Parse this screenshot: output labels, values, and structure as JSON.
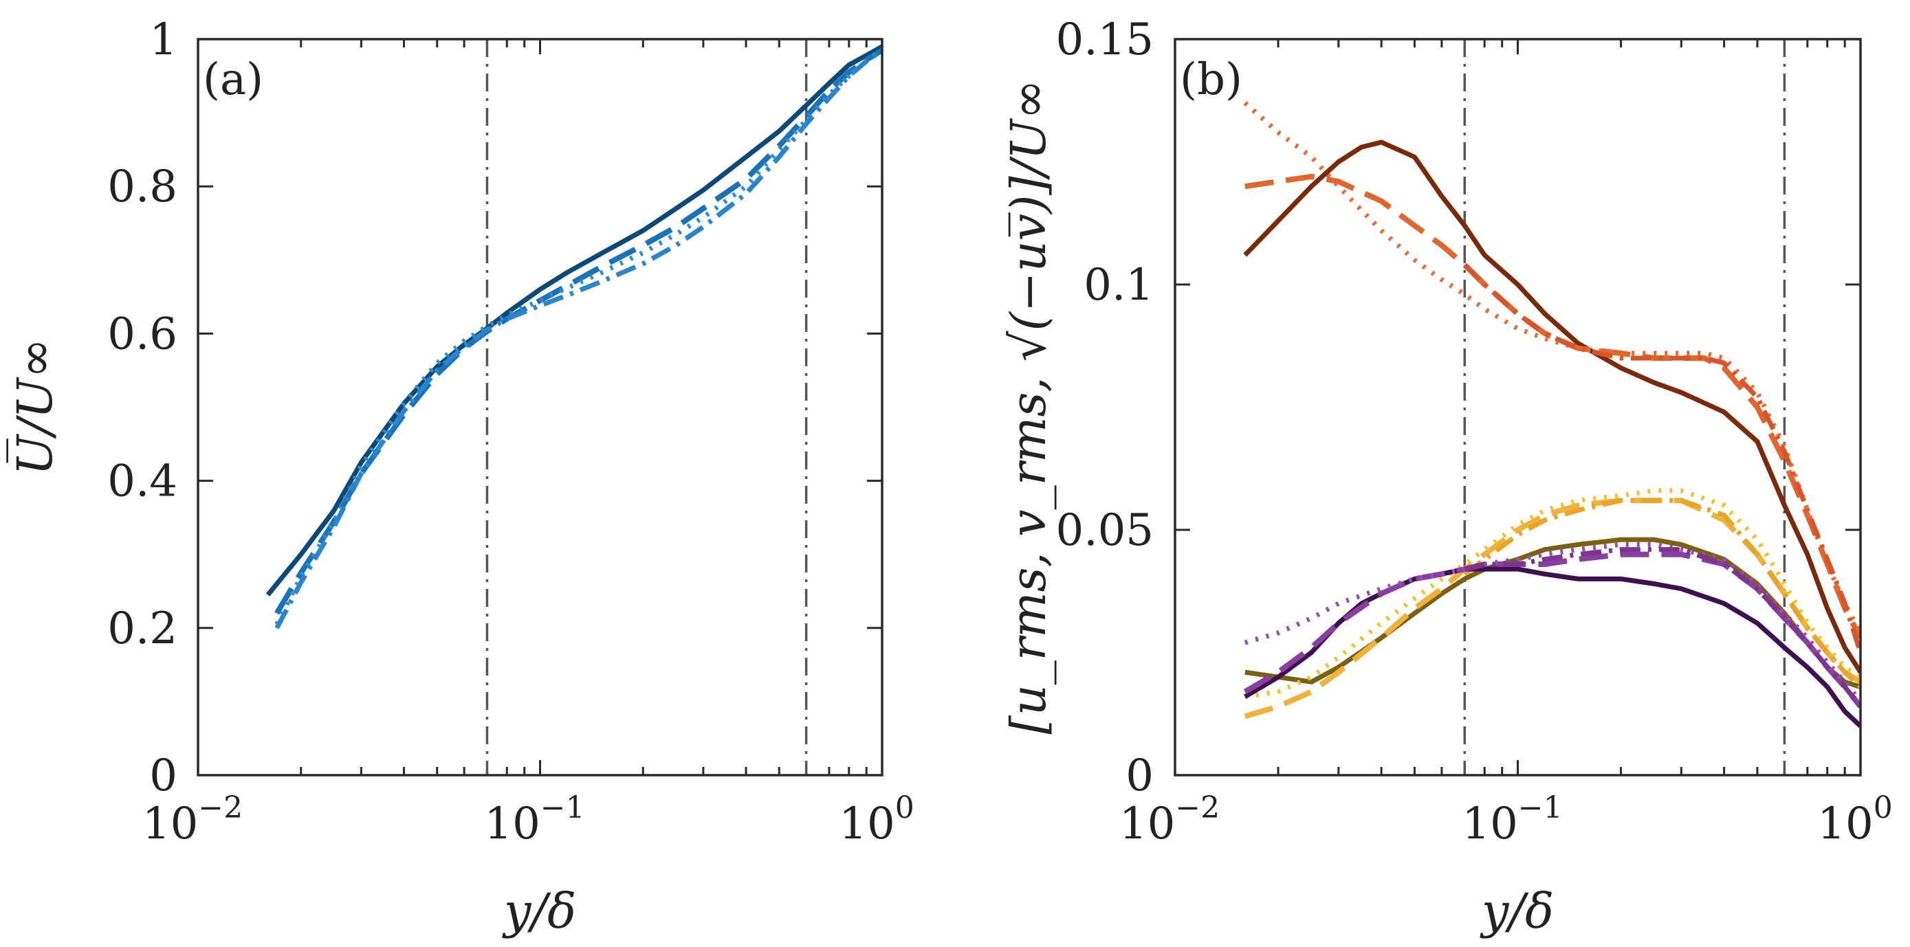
{
  "chart_data": [
    {
      "type": "line",
      "panel": "(a)",
      "xlabel": "y/δ",
      "ylabel": "U̅/U∞",
      "xscale": "log",
      "xlim": [
        0.01,
        1
      ],
      "ylim": [
        0,
        1
      ],
      "xticks": [
        {
          "value": 0.01,
          "base": "10",
          "exp": "−2"
        },
        {
          "value": 0.1,
          "base": "10",
          "exp": "−1"
        },
        {
          "value": 1,
          "base": "10",
          "exp": "0"
        }
      ],
      "yticks": [
        {
          "value": 0,
          "label": "0"
        },
        {
          "value": 0.2,
          "label": "0.2"
        },
        {
          "value": 0.4,
          "label": "0.4"
        },
        {
          "value": 0.6,
          "label": "0.6"
        },
        {
          "value": 0.8,
          "label": "0.8"
        },
        {
          "value": 1,
          "label": "1"
        }
      ],
      "vlines": [
        0.07,
        0.6
      ],
      "series": [
        {
          "name": "solid",
          "style": "solid",
          "color": "#0b4a78",
          "x": [
            0.016,
            0.02,
            0.025,
            0.03,
            0.04,
            0.05,
            0.06,
            0.07,
            0.08,
            0.1,
            0.12,
            0.15,
            0.2,
            0.25,
            0.3,
            0.4,
            0.5,
            0.6,
            0.7,
            0.8,
            0.9,
            1.0
          ],
          "y": [
            0.245,
            0.3,
            0.36,
            0.425,
            0.505,
            0.555,
            0.585,
            0.607,
            0.628,
            0.66,
            0.683,
            0.708,
            0.74,
            0.77,
            0.795,
            0.84,
            0.875,
            0.91,
            0.94,
            0.965,
            0.978,
            0.99
          ]
        },
        {
          "name": "dashed",
          "style": "dashed",
          "color": "#1a72b8",
          "x": [
            0.017,
            0.02,
            0.025,
            0.03,
            0.04,
            0.05,
            0.06,
            0.07,
            0.08,
            0.1,
            0.12,
            0.15,
            0.2,
            0.25,
            0.3,
            0.4,
            0.5,
            0.6,
            0.7,
            0.8,
            0.9,
            1.0
          ],
          "y": [
            0.22,
            0.275,
            0.345,
            0.41,
            0.49,
            0.545,
            0.58,
            0.603,
            0.62,
            0.645,
            0.665,
            0.69,
            0.72,
            0.745,
            0.77,
            0.81,
            0.855,
            0.895,
            0.93,
            0.955,
            0.972,
            0.985
          ]
        },
        {
          "name": "dotted",
          "style": "dotted",
          "color": "#2b8fd8",
          "x": [
            0.017,
            0.02,
            0.025,
            0.03,
            0.04,
            0.05,
            0.06,
            0.07,
            0.08,
            0.1,
            0.12,
            0.15,
            0.2,
            0.25,
            0.3,
            0.4,
            0.5,
            0.6,
            0.7,
            0.8,
            0.9,
            1.0
          ],
          "y": [
            0.205,
            0.27,
            0.345,
            0.42,
            0.505,
            0.56,
            0.59,
            0.61,
            0.625,
            0.645,
            0.662,
            0.682,
            0.71,
            0.735,
            0.758,
            0.8,
            0.85,
            0.89,
            0.925,
            0.95,
            0.97,
            0.985
          ]
        },
        {
          "name": "dash-dot",
          "style": "dashdot",
          "color": "#2a85cc",
          "x": [
            0.017,
            0.02,
            0.025,
            0.03,
            0.04,
            0.05,
            0.06,
            0.07,
            0.08,
            0.1,
            0.12,
            0.15,
            0.2,
            0.25,
            0.3,
            0.4,
            0.5,
            0.6,
            0.7,
            0.8,
            0.9,
            1.0
          ],
          "y": [
            0.2,
            0.262,
            0.338,
            0.41,
            0.495,
            0.55,
            0.582,
            0.605,
            0.62,
            0.638,
            0.652,
            0.67,
            0.695,
            0.72,
            0.745,
            0.79,
            0.84,
            0.885,
            0.92,
            0.95,
            0.97,
            0.985
          ]
        }
      ]
    },
    {
      "type": "line",
      "panel": "(b)",
      "xlabel": "y/δ",
      "ylabel": "[u_rms, v_rms, √(−uv̅)]/U∞",
      "xscale": "log",
      "xlim": [
        0.01,
        1
      ],
      "ylim": [
        0,
        0.15
      ],
      "xticks": [
        {
          "value": 0.01,
          "base": "10",
          "exp": "−2"
        },
        {
          "value": 0.1,
          "base": "10",
          "exp": "−1"
        },
        {
          "value": 1,
          "base": "10",
          "exp": "0"
        }
      ],
      "yticks": [
        {
          "value": 0,
          "label": "0"
        },
        {
          "value": 0.05,
          "label": "0.05"
        },
        {
          "value": 0.1,
          "label": "0.1"
        },
        {
          "value": 0.15,
          "label": "0.15"
        }
      ],
      "vlines": [
        0.07,
        0.6
      ],
      "series": [
        {
          "name": "u_rms solid",
          "style": "solid",
          "color": "#7a2a0a",
          "x": [
            0.016,
            0.02,
            0.025,
            0.03,
            0.035,
            0.04,
            0.05,
            0.06,
            0.07,
            0.08,
            0.1,
            0.12,
            0.15,
            0.2,
            0.25,
            0.3,
            0.4,
            0.5,
            0.6,
            0.7,
            0.8,
            0.9,
            1.0
          ],
          "y": [
            0.106,
            0.113,
            0.12,
            0.125,
            0.128,
            0.129,
            0.126,
            0.118,
            0.112,
            0.106,
            0.1,
            0.094,
            0.088,
            0.083,
            0.08,
            0.078,
            0.074,
            0.068,
            0.055,
            0.045,
            0.034,
            0.026,
            0.021
          ]
        },
        {
          "name": "u_rms dashed",
          "style": "dashed",
          "color": "#e0662e",
          "x": [
            0.016,
            0.02,
            0.025,
            0.03,
            0.04,
            0.05,
            0.06,
            0.07,
            0.08,
            0.1,
            0.12,
            0.15,
            0.2,
            0.25,
            0.3,
            0.35,
            0.4,
            0.5,
            0.6,
            0.7,
            0.8,
            0.9,
            1.0
          ],
          "y": [
            0.12,
            0.121,
            0.122,
            0.121,
            0.117,
            0.112,
            0.108,
            0.104,
            0.1,
            0.094,
            0.09,
            0.087,
            0.086,
            0.085,
            0.085,
            0.085,
            0.083,
            0.075,
            0.064,
            0.053,
            0.043,
            0.034,
            0.028
          ]
        },
        {
          "name": "u_rms dotted",
          "style": "dotted",
          "color": "#ea6a35",
          "x": [
            0.016,
            0.02,
            0.025,
            0.03,
            0.04,
            0.05,
            0.06,
            0.07,
            0.08,
            0.1,
            0.12,
            0.15,
            0.2,
            0.25,
            0.3,
            0.35,
            0.4,
            0.5,
            0.6,
            0.7,
            0.8,
            0.9,
            1.0
          ],
          "y": [
            0.137,
            0.131,
            0.126,
            0.12,
            0.111,
            0.105,
            0.101,
            0.098,
            0.095,
            0.091,
            0.089,
            0.087,
            0.086,
            0.086,
            0.086,
            0.086,
            0.085,
            0.078,
            0.067,
            0.054,
            0.043,
            0.035,
            0.029
          ]
        },
        {
          "name": "u_rms dash-dot",
          "style": "dashdot",
          "color": "#d8552a",
          "x": [
            0.07,
            0.08,
            0.1,
            0.12,
            0.15,
            0.2,
            0.25,
            0.3,
            0.35,
            0.4,
            0.5,
            0.6,
            0.7,
            0.8,
            0.9,
            1.0
          ],
          "y": [
            0.104,
            0.1,
            0.094,
            0.09,
            0.087,
            0.085,
            0.085,
            0.085,
            0.085,
            0.084,
            0.077,
            0.066,
            0.054,
            0.044,
            0.035,
            0.025
          ]
        },
        {
          "name": "v_rms solid",
          "style": "solid",
          "color": "#7a6010",
          "x": [
            0.016,
            0.02,
            0.025,
            0.03,
            0.04,
            0.05,
            0.06,
            0.07,
            0.08,
            0.1,
            0.12,
            0.15,
            0.2,
            0.25,
            0.3,
            0.4,
            0.5,
            0.6,
            0.7,
            0.8,
            0.9,
            1.0
          ],
          "y": [
            0.021,
            0.02,
            0.019,
            0.022,
            0.028,
            0.033,
            0.037,
            0.04,
            0.042,
            0.044,
            0.046,
            0.047,
            0.048,
            0.048,
            0.047,
            0.044,
            0.039,
            0.033,
            0.027,
            0.022,
            0.019,
            0.018
          ]
        },
        {
          "name": "v_rms dashed",
          "style": "dashed",
          "color": "#f0b23a",
          "x": [
            0.016,
            0.02,
            0.025,
            0.03,
            0.04,
            0.05,
            0.06,
            0.07,
            0.08,
            0.1,
            0.12,
            0.15,
            0.2,
            0.25,
            0.3,
            0.4,
            0.5,
            0.6,
            0.7,
            0.8,
            0.9,
            1.0
          ],
          "y": [
            0.012,
            0.014,
            0.017,
            0.021,
            0.028,
            0.034,
            0.038,
            0.042,
            0.045,
            0.05,
            0.053,
            0.055,
            0.056,
            0.056,
            0.056,
            0.052,
            0.045,
            0.037,
            0.03,
            0.025,
            0.021,
            0.019
          ]
        },
        {
          "name": "v_rms dotted",
          "style": "dotted",
          "color": "#f3c233",
          "x": [
            0.016,
            0.02,
            0.025,
            0.03,
            0.04,
            0.05,
            0.06,
            0.07,
            0.08,
            0.1,
            0.12,
            0.15,
            0.2,
            0.25,
            0.3,
            0.4,
            0.5,
            0.6,
            0.7,
            0.8,
            0.9,
            1.0
          ],
          "y": [
            0.016,
            0.017,
            0.02,
            0.024,
            0.031,
            0.036,
            0.04,
            0.043,
            0.046,
            0.051,
            0.054,
            0.056,
            0.057,
            0.058,
            0.058,
            0.055,
            0.048,
            0.039,
            0.031,
            0.026,
            0.022,
            0.02
          ]
        },
        {
          "name": "v_rms dash-dot",
          "style": "dashdot",
          "color": "#e8a52a",
          "x": [
            0.07,
            0.08,
            0.1,
            0.12,
            0.15,
            0.2,
            0.25,
            0.3,
            0.4,
            0.5,
            0.6,
            0.7,
            0.8,
            0.9,
            1.0
          ],
          "y": [
            0.041,
            0.044,
            0.049,
            0.052,
            0.054,
            0.056,
            0.056,
            0.056,
            0.053,
            0.045,
            0.037,
            0.03,
            0.025,
            0.021,
            0.018
          ]
        },
        {
          "name": "uv solid",
          "style": "solid",
          "color": "#3d1150",
          "x": [
            0.016,
            0.02,
            0.025,
            0.03,
            0.035,
            0.04,
            0.05,
            0.06,
            0.07,
            0.08,
            0.1,
            0.12,
            0.15,
            0.2,
            0.25,
            0.3,
            0.4,
            0.5,
            0.6,
            0.7,
            0.8,
            0.9,
            1.0
          ],
          "y": [
            0.016,
            0.02,
            0.025,
            0.031,
            0.035,
            0.037,
            0.04,
            0.041,
            0.042,
            0.042,
            0.042,
            0.041,
            0.04,
            0.04,
            0.039,
            0.038,
            0.035,
            0.031,
            0.026,
            0.022,
            0.018,
            0.013,
            0.01
          ]
        },
        {
          "name": "uv dashed",
          "style": "dashed",
          "color": "#8a3fa0",
          "x": [
            0.016,
            0.02,
            0.025,
            0.03,
            0.04,
            0.05,
            0.06,
            0.07,
            0.08,
            0.1,
            0.12,
            0.15,
            0.2,
            0.25,
            0.3,
            0.4,
            0.5,
            0.6,
            0.7,
            0.8,
            0.9,
            1.0
          ],
          "y": [
            0.017,
            0.021,
            0.026,
            0.031,
            0.037,
            0.04,
            0.041,
            0.042,
            0.043,
            0.043,
            0.043,
            0.044,
            0.045,
            0.045,
            0.045,
            0.043,
            0.038,
            0.032,
            0.027,
            0.022,
            0.018,
            0.014
          ]
        },
        {
          "name": "uv dotted",
          "style": "dotted",
          "color": "#9a4eb5",
          "x": [
            0.016,
            0.02,
            0.025,
            0.03,
            0.04,
            0.05,
            0.06,
            0.07,
            0.08,
            0.1,
            0.12,
            0.15,
            0.2,
            0.25,
            0.3,
            0.4,
            0.5,
            0.6,
            0.7,
            0.8,
            0.9,
            1.0
          ],
          "y": [
            0.027,
            0.029,
            0.032,
            0.035,
            0.038,
            0.04,
            0.041,
            0.042,
            0.043,
            0.044,
            0.045,
            0.046,
            0.047,
            0.047,
            0.046,
            0.044,
            0.039,
            0.033,
            0.028,
            0.023,
            0.019,
            0.015
          ]
        },
        {
          "name": "uv dash-dot",
          "style": "dashdot",
          "color": "#7d3392",
          "x": [
            0.07,
            0.08,
            0.1,
            0.12,
            0.15,
            0.2,
            0.25,
            0.3,
            0.4,
            0.5,
            0.6,
            0.7,
            0.8,
            0.9,
            1.0
          ],
          "y": [
            0.042,
            0.043,
            0.043,
            0.044,
            0.045,
            0.046,
            0.046,
            0.046,
            0.043,
            0.038,
            0.032,
            0.027,
            0.022,
            0.018,
            0.014
          ]
        }
      ]
    }
  ]
}
